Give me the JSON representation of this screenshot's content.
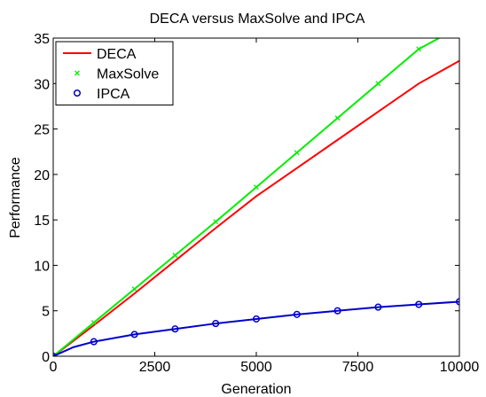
{
  "chart_data": {
    "type": "line",
    "title": "DECA versus MaxSolve and IPCA",
    "xlabel": "Generation",
    "ylabel": "Performance",
    "xlim": [
      0,
      10000
    ],
    "ylim": [
      0,
      35
    ],
    "xticks": [
      0,
      2500,
      5000,
      7500,
      10000
    ],
    "xtick_labels": [
      "0",
      "2500",
      "5000",
      "7500",
      "10000"
    ],
    "yticks": [
      0,
      5,
      10,
      15,
      20,
      25,
      30,
      35
    ],
    "ytick_labels": [
      "0",
      "5",
      "10",
      "15",
      "20",
      "25",
      "30",
      "35"
    ],
    "grid": false,
    "legend_position": "top-left",
    "series": [
      {
        "name": "DECA",
        "color": "#ff0000",
        "marker": "none",
        "x": [
          0,
          1000,
          2000,
          3000,
          4000,
          5000,
          6000,
          7000,
          8000,
          9000,
          10000
        ],
        "y": [
          0,
          3.4,
          6.9,
          10.5,
          14.1,
          17.6,
          20.7,
          23.8,
          26.9,
          30.0,
          32.5
        ]
      },
      {
        "name": "MaxSolve",
        "color": "#00ee00",
        "marker": "x",
        "x": [
          0,
          1000,
          2000,
          3000,
          4000,
          5000,
          6000,
          7000,
          8000,
          9000,
          9500
        ],
        "y": [
          0,
          3.7,
          7.4,
          11.1,
          14.8,
          18.6,
          22.4,
          26.2,
          30.0,
          33.8,
          35.0
        ],
        "marker_x": [
          0,
          1000,
          2000,
          3000,
          4000,
          5000,
          6000,
          7000,
          8000,
          9000
        ],
        "marker_y": [
          0,
          3.7,
          7.4,
          11.1,
          14.8,
          18.6,
          22.4,
          26.2,
          30.0,
          33.8
        ]
      },
      {
        "name": "IPCA",
        "color": "#0000cc",
        "marker": "circle",
        "x": [
          0,
          500,
          1000,
          2000,
          3000,
          4000,
          5000,
          6000,
          7000,
          8000,
          9000,
          10000
        ],
        "y": [
          0,
          1.0,
          1.6,
          2.4,
          3.0,
          3.6,
          4.1,
          4.6,
          5.0,
          5.4,
          5.7,
          6.0
        ],
        "marker_x": [
          0,
          1000,
          2000,
          3000,
          4000,
          5000,
          6000,
          7000,
          8000,
          9000,
          10000
        ],
        "marker_y": [
          0,
          1.6,
          2.4,
          3.0,
          3.6,
          4.1,
          4.6,
          5.0,
          5.4,
          5.7,
          6.0
        ]
      }
    ]
  }
}
